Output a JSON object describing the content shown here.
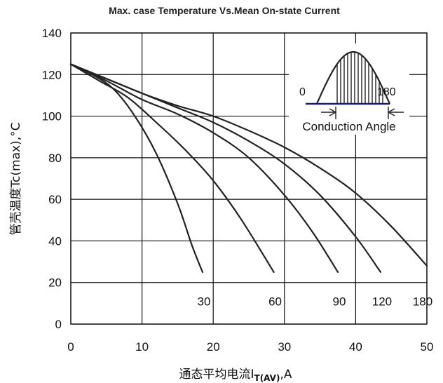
{
  "chart_data": {
    "type": "line",
    "title": "Max. case Temperature Vs.Mean On-state Current",
    "ylabel": "管壳温度Tc(max),°C",
    "xlabel_main": "通态平均电流I",
    "xlabel_sub": "T(AV)",
    "xlabel_unit": ",A",
    "xlim": [
      0,
      50
    ],
    "ylim": [
      0,
      140
    ],
    "x_ticks": [
      "0",
      "10",
      "20",
      "30",
      "40",
      "50"
    ],
    "y_ticks": [
      "0",
      "20",
      "40",
      "60",
      "80",
      "100",
      "120",
      "140"
    ],
    "grid": true,
    "series": [
      {
        "name": "30",
        "x": [
          0,
          3,
          6,
          9,
          12,
          15,
          17,
          18.5
        ],
        "y": [
          125,
          120,
          113,
          100,
          82,
          58,
          38,
          25
        ]
      },
      {
        "name": "60",
        "x": [
          0,
          4,
          8,
          12,
          16,
          20,
          24,
          28.5
        ],
        "y": [
          125,
          117,
          109,
          97,
          84,
          69,
          50,
          25
        ]
      },
      {
        "name": "90",
        "x": [
          0,
          5,
          10,
          15,
          20,
          25,
          30,
          34,
          37.5
        ],
        "y": [
          125,
          117,
          108,
          101,
          92,
          80,
          62,
          44,
          25
        ]
      },
      {
        "name": "120",
        "x": [
          0,
          5,
          10,
          15,
          20,
          25,
          30,
          35,
          40,
          43.5
        ],
        "y": [
          125,
          118,
          111,
          104,
          97,
          88,
          77,
          62,
          42,
          25
        ]
      },
      {
        "name": "180",
        "x": [
          0,
          5,
          10,
          15,
          20,
          25,
          30,
          35,
          40,
          45,
          50
        ],
        "y": [
          125,
          118,
          111,
          105,
          100,
          93,
          85,
          75,
          63,
          47,
          28
        ]
      }
    ],
    "inset": {
      "label_start": "0",
      "label_end": "180",
      "caption": "Conduction Angle"
    }
  }
}
